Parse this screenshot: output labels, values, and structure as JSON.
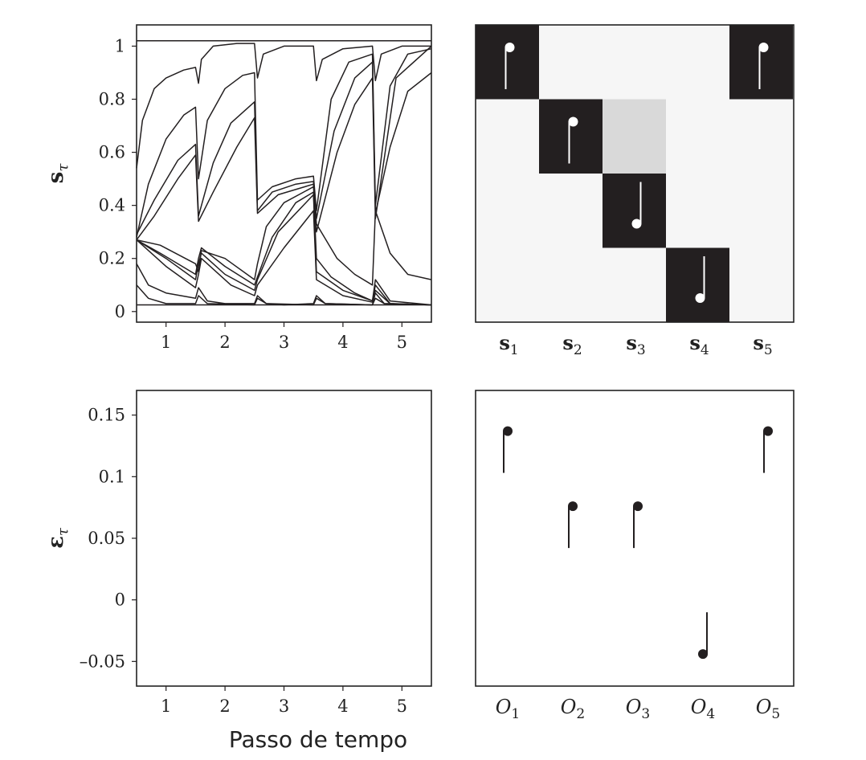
{
  "xlabel": "Passo de tempo",
  "chart_data": [
    {
      "id": "states",
      "type": "line",
      "ylabel_main": "s",
      "ylabel_sub": "τ",
      "xlim": [
        0.5,
        5.5
      ],
      "ylim": [
        -0.04,
        1.08
      ],
      "xticks": [
        "1",
        "2",
        "3",
        "4",
        "5"
      ],
      "yticks": [
        {
          "v": 0,
          "label": "0"
        },
        {
          "v": 0.2,
          "label": "0.2"
        },
        {
          "v": 0.4,
          "label": "0.4"
        },
        {
          "v": 0.6,
          "label": "0.6"
        },
        {
          "v": 0.8,
          "label": "0.8"
        },
        {
          "v": 1,
          "label": "1"
        }
      ],
      "series": [
        {
          "points": [
            [
              0.5,
              1.02
            ],
            [
              5.5,
              1.02
            ]
          ]
        },
        {
          "points": [
            [
              0.5,
              0.025
            ],
            [
              5.5,
              0.025
            ]
          ]
        },
        {
          "points": [
            [
              0.5,
              0.54
            ],
            [
              0.6,
              0.72
            ],
            [
              0.8,
              0.84
            ],
            [
              1.0,
              0.88
            ],
            [
              1.3,
              0.91
            ],
            [
              1.5,
              0.92
            ],
            [
              1.55,
              0.86
            ],
            [
              1.6,
              0.95
            ],
            [
              1.8,
              1.0
            ],
            [
              2.2,
              1.01
            ],
            [
              2.5,
              1.01
            ],
            [
              2.55,
              0.88
            ],
            [
              2.65,
              0.97
            ],
            [
              3.0,
              1.0
            ],
            [
              3.5,
              1.0
            ],
            [
              3.55,
              0.87
            ],
            [
              3.65,
              0.95
            ],
            [
              4.0,
              0.99
            ],
            [
              4.5,
              1.0
            ],
            [
              4.55,
              0.87
            ],
            [
              4.65,
              0.97
            ],
            [
              5.0,
              1.0
            ],
            [
              5.5,
              1.0
            ]
          ]
        },
        {
          "points": [
            [
              0.5,
              0.28
            ],
            [
              0.7,
              0.48
            ],
            [
              1.0,
              0.65
            ],
            [
              1.3,
              0.74
            ],
            [
              1.5,
              0.77
            ],
            [
              1.55,
              0.5
            ],
            [
              1.7,
              0.72
            ],
            [
              2.0,
              0.84
            ],
            [
              2.3,
              0.89
            ],
            [
              2.5,
              0.9
            ],
            [
              2.55,
              0.42
            ],
            [
              2.8,
              0.47
            ],
            [
              3.2,
              0.5
            ],
            [
              3.5,
              0.51
            ],
            [
              3.55,
              0.38
            ],
            [
              3.8,
              0.8
            ],
            [
              4.1,
              0.94
            ],
            [
              4.5,
              0.97
            ],
            [
              4.55,
              0.4
            ],
            [
              4.8,
              0.85
            ],
            [
              5.1,
              0.97
            ],
            [
              5.5,
              0.99
            ]
          ]
        },
        {
          "points": [
            [
              0.5,
              0.29
            ],
            [
              0.8,
              0.42
            ],
            [
              1.2,
              0.57
            ],
            [
              1.5,
              0.63
            ],
            [
              1.55,
              0.36
            ],
            [
              1.8,
              0.56
            ],
            [
              2.1,
              0.71
            ],
            [
              2.5,
              0.79
            ],
            [
              2.55,
              0.38
            ],
            [
              2.8,
              0.45
            ],
            [
              3.2,
              0.48
            ],
            [
              3.5,
              0.49
            ],
            [
              3.55,
              0.35
            ],
            [
              3.85,
              0.68
            ],
            [
              4.2,
              0.88
            ],
            [
              4.5,
              0.94
            ],
            [
              4.55,
              0.37
            ],
            [
              4.8,
              0.62
            ],
            [
              5.1,
              0.83
            ],
            [
              5.5,
              0.9
            ]
          ]
        },
        {
          "points": [
            [
              0.5,
              0.27
            ],
            [
              0.8,
              0.36
            ],
            [
              1.2,
              0.5
            ],
            [
              1.5,
              0.59
            ],
            [
              1.55,
              0.34
            ],
            [
              1.8,
              0.45
            ],
            [
              2.2,
              0.62
            ],
            [
              2.5,
              0.73
            ],
            [
              2.55,
              0.37
            ],
            [
              2.9,
              0.44
            ],
            [
              3.5,
              0.48
            ],
            [
              3.55,
              0.3
            ],
            [
              3.9,
              0.6
            ],
            [
              4.2,
              0.78
            ],
            [
              4.5,
              0.88
            ],
            [
              4.55,
              0.35
            ],
            [
              4.9,
              0.88
            ],
            [
              5.5,
              1.0
            ]
          ]
        },
        {
          "points": [
            [
              0.5,
              0.27
            ],
            [
              0.9,
              0.25
            ],
            [
              1.5,
              0.18
            ],
            [
              1.55,
              0.15
            ],
            [
              1.6,
              0.23
            ],
            [
              2.0,
              0.2
            ],
            [
              2.5,
              0.12
            ],
            [
              2.55,
              0.18
            ],
            [
              2.7,
              0.32
            ],
            [
              3.0,
              0.41
            ],
            [
              3.5,
              0.47
            ],
            [
              3.55,
              0.33
            ],
            [
              3.9,
              0.2
            ],
            [
              4.2,
              0.14
            ],
            [
              4.5,
              0.1
            ],
            [
              4.55,
              0.38
            ],
            [
              4.8,
              0.22
            ],
            [
              5.1,
              0.14
            ],
            [
              5.5,
              0.12
            ]
          ]
        },
        {
          "points": [
            [
              0.5,
              0.27
            ],
            [
              0.9,
              0.22
            ],
            [
              1.5,
              0.14
            ],
            [
              1.55,
              0.2
            ],
            [
              1.6,
              0.24
            ],
            [
              2.0,
              0.17
            ],
            [
              2.5,
              0.1
            ],
            [
              2.55,
              0.13
            ],
            [
              2.8,
              0.28
            ],
            [
              3.2,
              0.41
            ],
            [
              3.5,
              0.45
            ],
            [
              3.55,
              0.2
            ],
            [
              3.8,
              0.13
            ],
            [
              4.2,
              0.07
            ],
            [
              4.5,
              0.04
            ],
            [
              4.55,
              0.12
            ],
            [
              4.8,
              0.04
            ],
            [
              5.5,
              0.025
            ]
          ]
        },
        {
          "points": [
            [
              0.5,
              0.27
            ],
            [
              1.0,
              0.2
            ],
            [
              1.5,
              0.12
            ],
            [
              1.55,
              0.18
            ],
            [
              1.6,
              0.22
            ],
            [
              2.0,
              0.14
            ],
            [
              2.5,
              0.08
            ],
            [
              2.55,
              0.12
            ],
            [
              2.9,
              0.3
            ],
            [
              3.5,
              0.44
            ],
            [
              3.55,
              0.15
            ],
            [
              4.0,
              0.08
            ],
            [
              4.5,
              0.04
            ],
            [
              4.55,
              0.1
            ],
            [
              4.8,
              0.03
            ],
            [
              5.5,
              0.025
            ]
          ]
        },
        {
          "points": [
            [
              0.5,
              0.27
            ],
            [
              1.0,
              0.17
            ],
            [
              1.5,
              0.09
            ],
            [
              1.55,
              0.14
            ],
            [
              1.6,
              0.2
            ],
            [
              2.1,
              0.1
            ],
            [
              2.5,
              0.06
            ],
            [
              2.55,
              0.1
            ],
            [
              3.0,
              0.24
            ],
            [
              3.5,
              0.38
            ],
            [
              3.55,
              0.12
            ],
            [
              4.0,
              0.06
            ],
            [
              4.5,
              0.035
            ],
            [
              4.55,
              0.08
            ],
            [
              4.8,
              0.03
            ],
            [
              5.5,
              0.025
            ]
          ]
        },
        {
          "points": [
            [
              0.5,
              0.18
            ],
            [
              0.7,
              0.1
            ],
            [
              1.0,
              0.07
            ],
            [
              1.5,
              0.05
            ],
            [
              1.55,
              0.09
            ],
            [
              1.7,
              0.04
            ],
            [
              2.0,
              0.03
            ],
            [
              2.5,
              0.03
            ],
            [
              2.55,
              0.06
            ],
            [
              2.7,
              0.03
            ],
            [
              3.0,
              0.025
            ],
            [
              3.5,
              0.03
            ],
            [
              3.55,
              0.06
            ],
            [
              3.7,
              0.03
            ],
            [
              4.5,
              0.025
            ],
            [
              4.55,
              0.07
            ],
            [
              4.7,
              0.03
            ],
            [
              5.5,
              0.025
            ]
          ]
        },
        {
          "points": [
            [
              0.5,
              0.1
            ],
            [
              0.7,
              0.05
            ],
            [
              1.0,
              0.03
            ],
            [
              1.5,
              0.03
            ],
            [
              1.55,
              0.06
            ],
            [
              1.7,
              0.03
            ],
            [
              2.5,
              0.025
            ],
            [
              2.55,
              0.05
            ],
            [
              2.7,
              0.03
            ],
            [
              3.5,
              0.025
            ],
            [
              3.55,
              0.05
            ],
            [
              3.7,
              0.03
            ],
            [
              4.5,
              0.025
            ],
            [
              4.55,
              0.05
            ],
            [
              4.7,
              0.03
            ],
            [
              5.5,
              0.025
            ]
          ]
        }
      ]
    },
    {
      "id": "matrix",
      "type": "heatmap",
      "xticks": [
        {
          "main": "s",
          "sub": "1"
        },
        {
          "main": "s",
          "sub": "2"
        },
        {
          "main": "s",
          "sub": "3"
        },
        {
          "main": "s",
          "sub": "4"
        },
        {
          "main": "s",
          "sub": "5"
        }
      ],
      "rows": 4,
      "cells": [
        {
          "col": 0,
          "row": 0,
          "shade": "#231f20"
        },
        {
          "col": 1,
          "row": 0,
          "shade": "#f6f6f6"
        },
        {
          "col": 2,
          "row": 0,
          "shade": "#f6f6f6"
        },
        {
          "col": 3,
          "row": 0,
          "shade": "#f6f6f6"
        },
        {
          "col": 4,
          "row": 0,
          "shade": "#231f20"
        },
        {
          "col": 0,
          "row": 1,
          "shade": "#f6f6f6"
        },
        {
          "col": 1,
          "row": 1,
          "shade": "#231f20"
        },
        {
          "col": 2,
          "row": 1,
          "shade": "#d9d9d9"
        },
        {
          "col": 3,
          "row": 1,
          "shade": "#f6f6f6"
        },
        {
          "col": 4,
          "row": 1,
          "shade": "#f6f6f6"
        },
        {
          "col": 0,
          "row": 2,
          "shade": "#f6f6f6"
        },
        {
          "col": 1,
          "row": 2,
          "shade": "#f6f6f6"
        },
        {
          "col": 2,
          "row": 2,
          "shade": "#231f20"
        },
        {
          "col": 3,
          "row": 2,
          "shade": "#f6f6f6"
        },
        {
          "col": 4,
          "row": 2,
          "shade": "#f6f6f6"
        },
        {
          "col": 0,
          "row": 3,
          "shade": "#f6f6f6"
        },
        {
          "col": 1,
          "row": 3,
          "shade": "#f6f6f6"
        },
        {
          "col": 2,
          "row": 3,
          "shade": "#f6f6f6"
        },
        {
          "col": 3,
          "row": 3,
          "shade": "#231f20"
        },
        {
          "col": 4,
          "row": 3,
          "shade": "#f6f6f6"
        }
      ],
      "notes": [
        {
          "col": 0,
          "row": 0,
          "dir": "up"
        },
        {
          "col": 4,
          "row": 0,
          "dir": "up"
        },
        {
          "col": 1,
          "row": 1,
          "dir": "up"
        },
        {
          "col": 2,
          "row": 2,
          "dir": "down"
        },
        {
          "col": 3,
          "row": 3,
          "dir": "down"
        }
      ]
    },
    {
      "id": "errors",
      "type": "line",
      "ylabel_main": "ε",
      "ylabel_sub": "τ",
      "xlim": [
        0.5,
        5.5
      ],
      "ylim": [
        -0.07,
        0.17
      ],
      "xticks": [
        "1",
        "2",
        "3",
        "4",
        "5"
      ],
      "yticks": [
        {
          "v": 0.15,
          "label": "0.15"
        },
        {
          "v": 0.1,
          "label": "0.1"
        },
        {
          "v": 0.05,
          "label": "0.05"
        },
        {
          "v": 0,
          "label": "0"
        },
        {
          "v": -0.05,
          "label": "–0.05"
        }
      ],
      "series": []
    },
    {
      "id": "outcomes",
      "type": "scatter",
      "ylim": [
        -0.07,
        0.17
      ],
      "xticks": [
        {
          "main": "O",
          "sub": "1"
        },
        {
          "main": "O",
          "sub": "2"
        },
        {
          "main": "O",
          "sub": "3"
        },
        {
          "main": "O",
          "sub": "4"
        },
        {
          "main": "O",
          "sub": "5"
        }
      ],
      "notes": [
        {
          "col": 0,
          "value": 0.137,
          "dir": "up"
        },
        {
          "col": 1,
          "value": 0.076,
          "dir": "up"
        },
        {
          "col": 2,
          "value": 0.076,
          "dir": "up"
        },
        {
          "col": 3,
          "value": -0.044,
          "dir": "down"
        },
        {
          "col": 4,
          "value": 0.137,
          "dir": "up"
        }
      ]
    }
  ],
  "colors": {
    "ink": "#231f20",
    "paper": "#ffffff"
  }
}
